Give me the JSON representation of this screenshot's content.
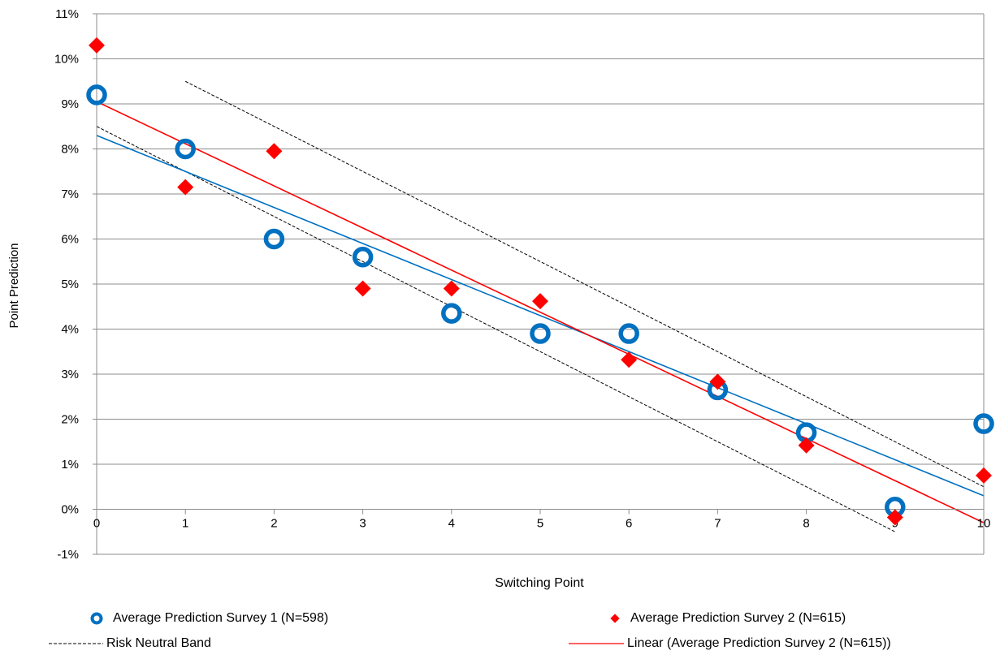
{
  "chart_data": {
    "type": "scatter",
    "xlabel": "Switching Point",
    "ylabel": "Point Prediction",
    "xlim": [
      0,
      10
    ],
    "ylim": [
      -1,
      11
    ],
    "x_ticks": [
      "0",
      "1",
      "2",
      "3",
      "4",
      "5",
      "6",
      "7",
      "8",
      "9",
      "10"
    ],
    "y_ticks": [
      "-1%",
      "0%",
      "1%",
      "2%",
      "3%",
      "4%",
      "5%",
      "6%",
      "7%",
      "8%",
      "9%",
      "10%",
      "11%"
    ],
    "grid": "horizontal",
    "legend_position": "bottom",
    "series": [
      {
        "name": "Average Prediction Survey 1 (N=598)",
        "marker": "circle",
        "color": "#0070C0",
        "x": [
          0,
          1,
          2,
          3,
          4,
          5,
          6,
          7,
          8,
          9,
          10
        ],
        "y": [
          9.2,
          8.0,
          6.0,
          5.6,
          4.35,
          3.9,
          3.9,
          2.65,
          1.7,
          0.05,
          1.9
        ]
      },
      {
        "name": "Average Prediction Survey 2 (N=615)",
        "marker": "diamond",
        "color": "#FF0000",
        "x": [
          0,
          1,
          2,
          3,
          4,
          5,
          6,
          7,
          8,
          9,
          10
        ],
        "y": [
          10.3,
          7.15,
          7.95,
          4.9,
          4.9,
          4.62,
          3.32,
          2.83,
          1.42,
          -0.18,
          0.75
        ]
      }
    ],
    "trendlines": [
      {
        "name": "",
        "color": "#0070C0",
        "x": [
          0,
          10
        ],
        "y": [
          8.3,
          0.3
        ]
      },
      {
        "name": "Linear (Average Prediction Survey 2 (N=615))",
        "color": "#FF0000",
        "x": [
          0,
          10
        ],
        "y": [
          9.05,
          -0.3
        ]
      }
    ],
    "band": {
      "name": "Risk Neutral Band",
      "color": "#000000",
      "lines": [
        {
          "x": [
            0,
            9
          ],
          "y": [
            8.5,
            -0.5
          ]
        },
        {
          "x": [
            1,
            10
          ],
          "y": [
            9.5,
            0.5
          ]
        }
      ]
    }
  },
  "legend": {
    "item1": "Average Prediction Survey 1 (N=598)",
    "item2": "Average Prediction Survey 2 (N=615)",
    "item3": "Risk Neutral Band",
    "item4": "Linear (Average Prediction Survey 2 (N=615))"
  }
}
